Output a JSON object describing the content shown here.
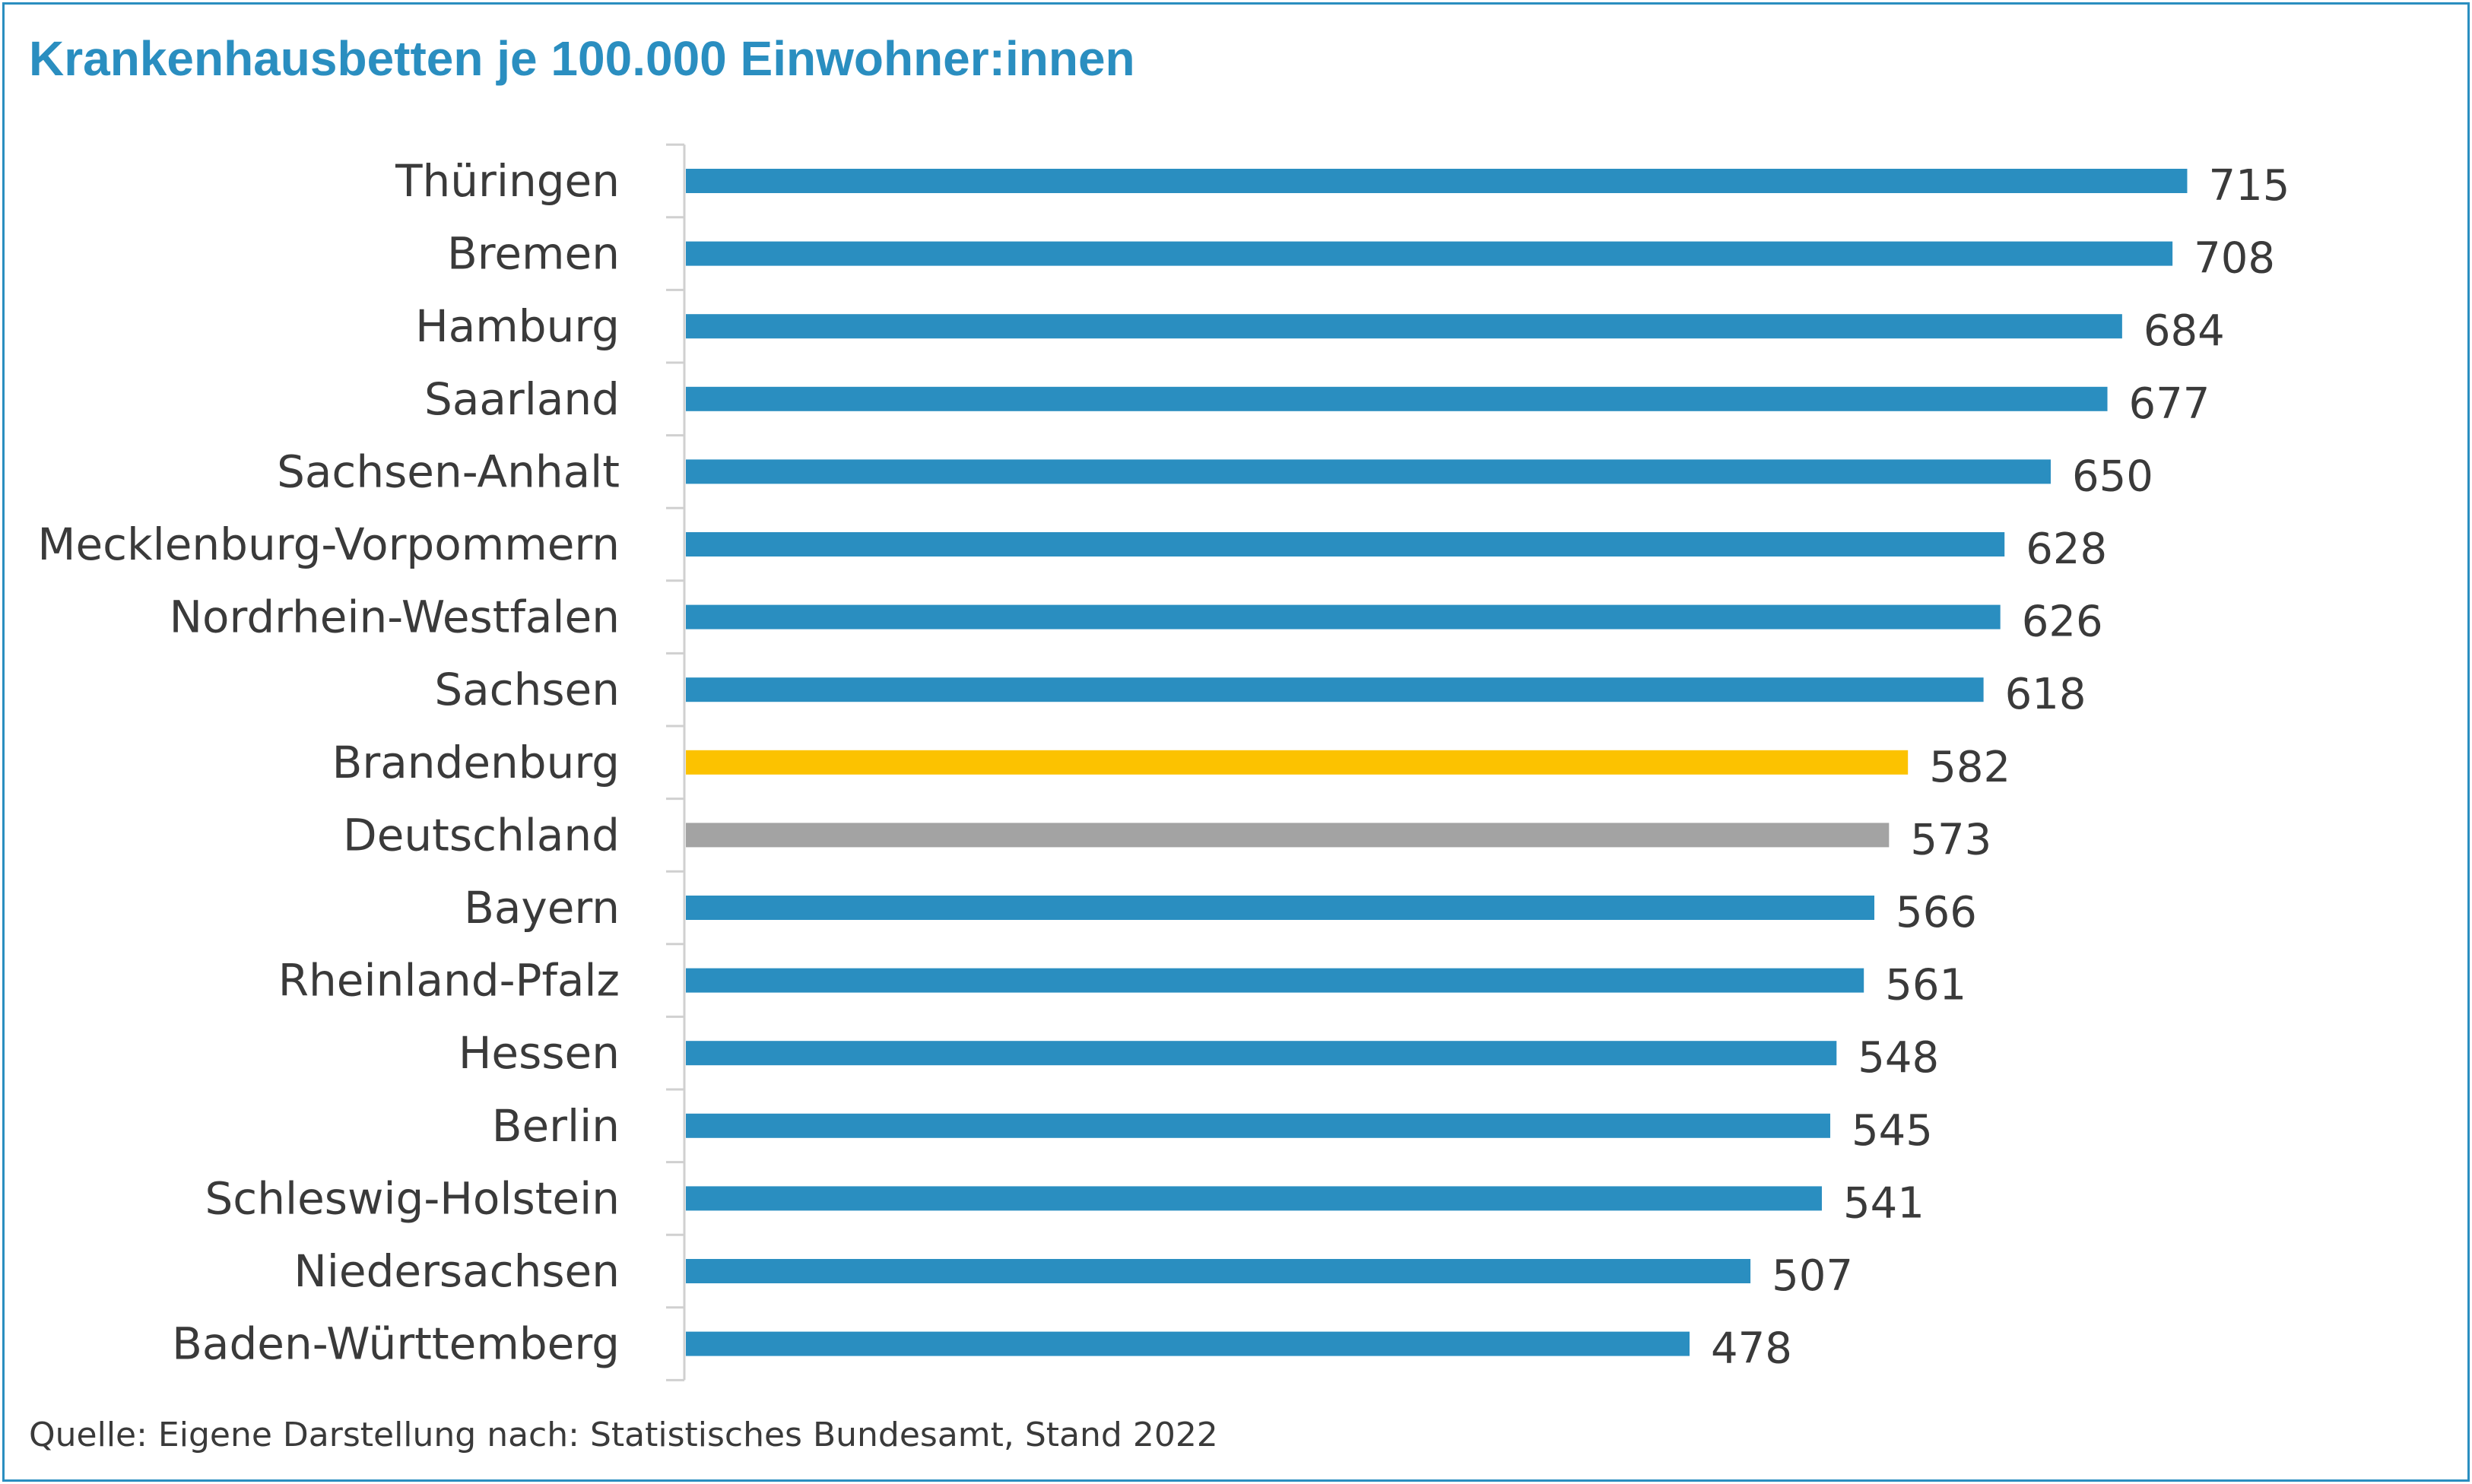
{
  "title": "Krankenhausbetten je 100.000 Einwohner:innen",
  "source": "Quelle: Eigene Darstellung nach: Statistisches Bundesamt, Stand 2022",
  "colors": {
    "default": "#2a8ec0",
    "highlight": "#fcc200",
    "reference": "#a3a3a3",
    "frame": "#2a8ec0",
    "axis": "#d0d0d0"
  },
  "chart_data": {
    "type": "bar",
    "orientation": "horizontal",
    "title": "Krankenhausbetten je 100.000 Einwohner:innen",
    "xlabel": "",
    "ylabel": "",
    "xlim": [
      0,
      720
    ],
    "grid": false,
    "categories": [
      "Thüringen",
      "Bremen",
      "Hamburg",
      "Saarland",
      "Sachsen-Anhalt",
      "Mecklenburg-Vorpommern",
      "Nordrhein-Westfalen",
      "Sachsen",
      "Brandenburg",
      "Deutschland",
      "Bayern",
      "Rheinland-Pfalz",
      "Hessen",
      "Berlin",
      "Schleswig-Holstein",
      "Niedersachsen",
      "Baden-Württemberg"
    ],
    "values": [
      715,
      708,
      684,
      677,
      650,
      628,
      626,
      618,
      582,
      573,
      566,
      561,
      548,
      545,
      541,
      507,
      478
    ],
    "highlight": {
      "category": "Brandenburg",
      "color": "#fcc200"
    },
    "reference": {
      "category": "Deutschland",
      "color": "#a3a3a3"
    }
  }
}
